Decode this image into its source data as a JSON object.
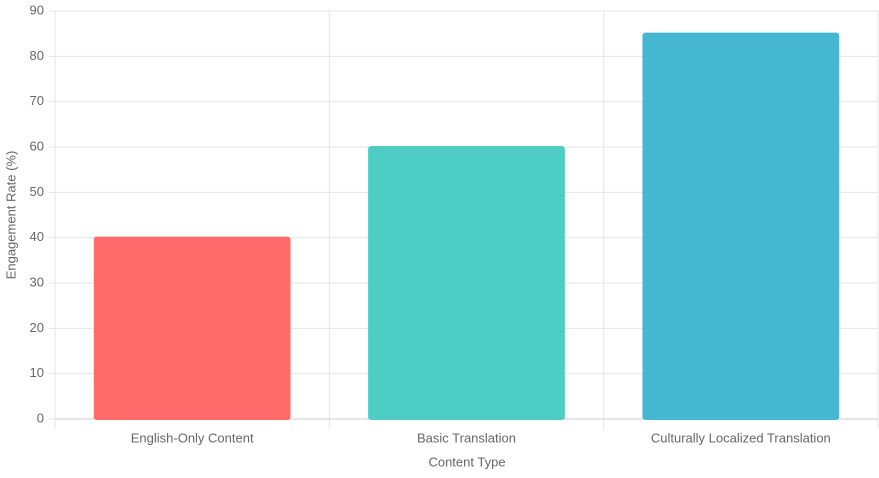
{
  "chart_data": {
    "type": "bar",
    "x_label": "Content Type",
    "y_label": "Engagement Rate (%)",
    "categories": [
      "English-Only Content",
      "Basic Translation",
      "Culturally Localized Translation"
    ],
    "values": [
      40,
      60,
      85
    ],
    "colors": [
      "#FF6B6B",
      "#4ECDC4",
      "#45B7D1"
    ],
    "ylim": [
      0,
      90
    ],
    "yticks": [
      0,
      10,
      20,
      30,
      40,
      50,
      60,
      70,
      80,
      90
    ],
    "grid": true
  }
}
